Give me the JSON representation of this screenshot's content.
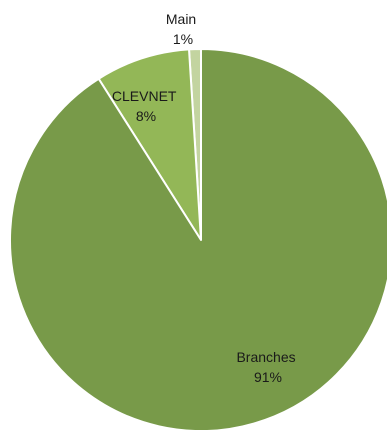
{
  "chart_data": {
    "type": "pie",
    "title": "",
    "slices": [
      {
        "label": "Main",
        "percent_label": "1%",
        "value": 1,
        "color": "#c3d4a0"
      },
      {
        "label": "CLEVNET",
        "percent_label": "8%",
        "value": 8,
        "color": "#93b757"
      },
      {
        "label": "Branches",
        "percent_label": "91%",
        "value": 91,
        "color": "#789a49"
      }
    ],
    "start_angle_deg": 0,
    "direction": "counterclockwise",
    "slice_border_color": "#ffffff",
    "legend": "none"
  }
}
